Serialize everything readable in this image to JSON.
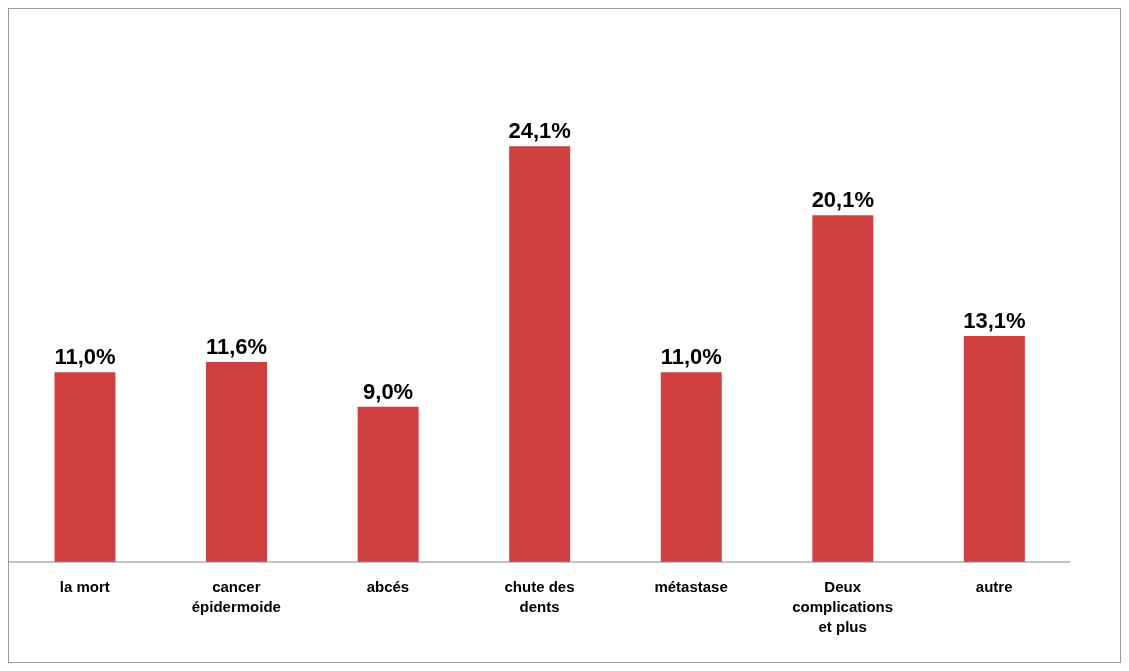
{
  "chart_data": {
    "type": "bar",
    "categories": [
      "la mort",
      "cancer épidermoide",
      "abcés",
      "chute des dents",
      "métastase",
      "Deux complications et plus",
      "autre"
    ],
    "values": [
      11.0,
      11.6,
      9.0,
      24.1,
      11.0,
      20.1,
      13.1
    ],
    "value_labels": [
      "11,0%",
      "11,6%",
      "9,0%",
      "24,1%",
      "11,0%",
      "20,1%",
      "13,1%"
    ],
    "color": "#d04040",
    "tick_labels": "x"
  }
}
